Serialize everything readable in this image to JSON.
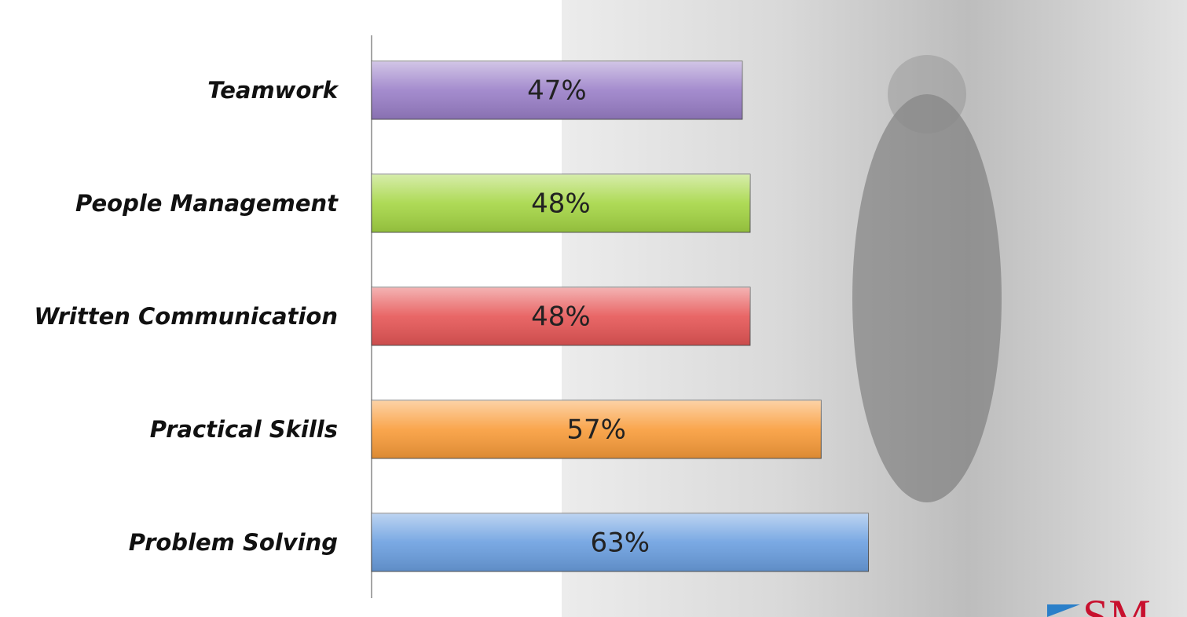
{
  "chart_data": {
    "type": "bar",
    "orientation": "horizontal",
    "categories": [
      "Teamwork",
      "People Management",
      "Written Communication",
      "Practical Skills",
      "Problem Solving"
    ],
    "values": [
      47,
      48,
      48,
      57,
      63
    ],
    "value_labels": [
      "47%",
      "48%",
      "48%",
      "57%",
      "63%"
    ],
    "colors": [
      "#9a7fc8",
      "#a5d644",
      "#e65656",
      "#f99c3a",
      "#6b9fe0"
    ]
  },
  "logo": "SM"
}
